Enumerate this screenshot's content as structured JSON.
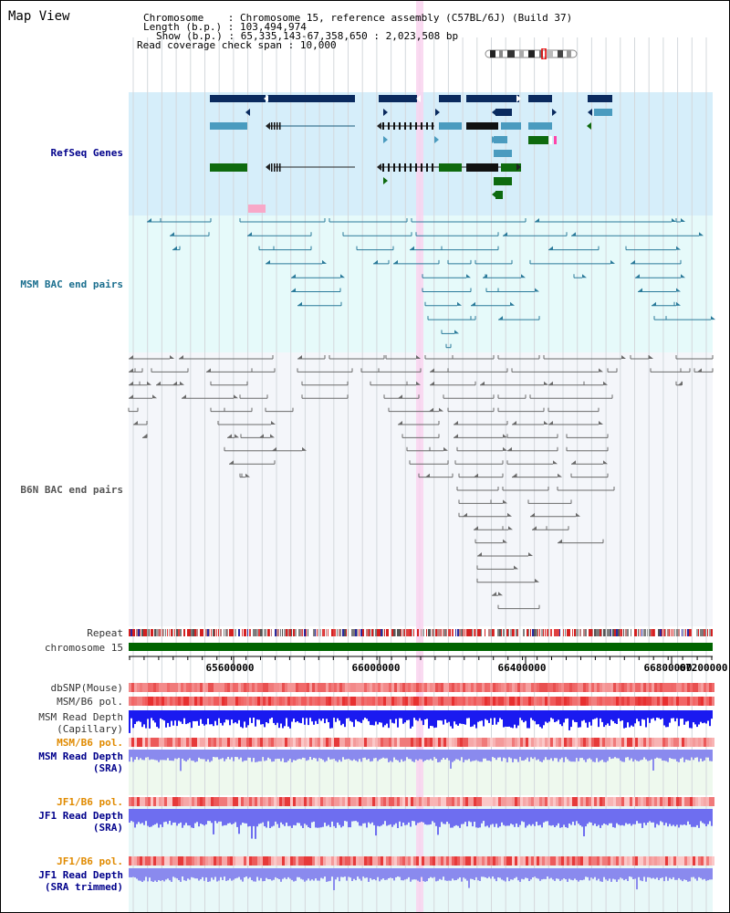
{
  "view_title": "Map View",
  "header": {
    "chromosome_label": "Chromosome",
    "chromosome_value": "Chromosome 15, reference assembly (C57BL/6J) (Build 37)",
    "length_label": "Length (b.p.)",
    "length_value": "103,494,974",
    "show_label": "Show (b.p.)",
    "show_value": "65,335,143-67,358,650 : 2,023,508 bp",
    "span_label": "Read coverage check span",
    "span_value": "10,000"
  },
  "tracks": {
    "refseq": "RefSeq Genes",
    "msm_bac": "MSM BAC end pairs",
    "b6n_bac": "B6N BAC end pairs",
    "repeat": "Repeat",
    "chromosome": "chromosome 15",
    "dbsnp": "dbSNP(Mouse)",
    "msm_pol_1": "MSM/B6 pol.",
    "msm_depth_cap_1": "MSM Read Depth",
    "msm_depth_cap_2": "(Capillary)",
    "msm_pol_2": "MSM/B6 pol.",
    "msm_depth_sra_1": "MSM Read Depth",
    "msm_depth_sra_2": "(SRA)",
    "jf1_pol_1": "JF1/B6 pol.",
    "jf1_depth_sra_1": "JF1 Read Depth",
    "jf1_depth_sra_2": "(SRA)",
    "jf1_pol_2": "JF1/B6 pol.",
    "jf1_depth_trim_1": "JF1 Read Depth",
    "jf1_depth_trim_2": "(SRA trimmed)"
  },
  "axis_ticks": [
    "65600000",
    "66000000",
    "66400000",
    "66800000",
    "67200000"
  ],
  "colors": {
    "refseq_bg": "#d6eefa",
    "msm_bg": "#e6fafa",
    "b6n_bg": "#f4f6fa",
    "refseq_label": "#00008b",
    "msm_label": "#1a6e8e",
    "b6n_label": "#555555",
    "pol_label_orange": "#e08a00",
    "depth_label_blue": "#00008b",
    "highlight": "#f9d4ef",
    "chromosome_bar": "#006400",
    "dark_gene": "#0a2a5e",
    "light_gene": "#4a9bbf",
    "green_gene": "#0e6a0e"
  }
}
